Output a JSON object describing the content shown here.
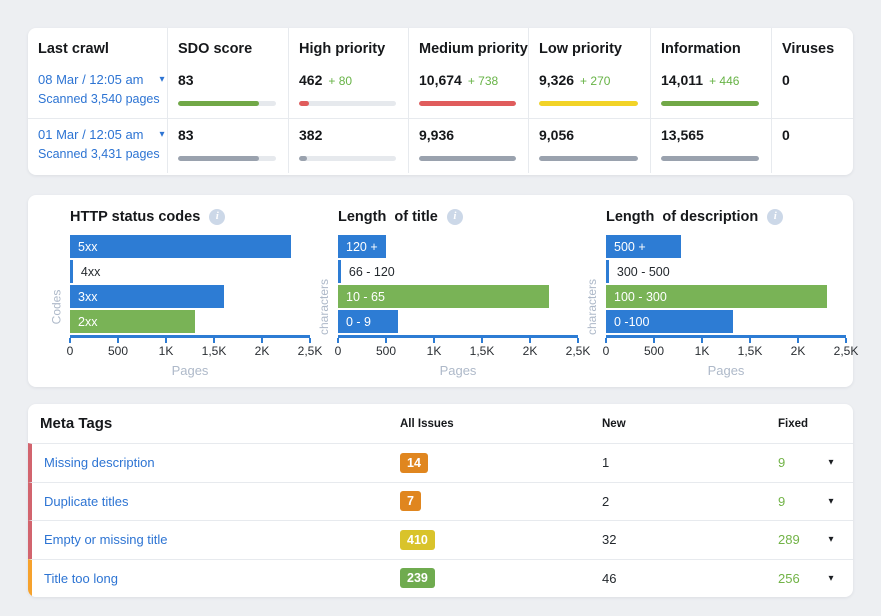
{
  "icons": {
    "chevron_down": "▾",
    "info": "i"
  },
  "top_card": {
    "columns": [
      "Last crawl",
      "SDO score",
      "High priority",
      "Medium priority",
      "Low priority",
      "Information",
      "Viruses"
    ],
    "delta_color": "#67b346",
    "rows": [
      {
        "date": "08 Mar / 12:05 am",
        "scanned": "Scanned 3,540 pages",
        "metrics": [
          {
            "value": "83",
            "delta": "",
            "bar_pct": 83,
            "bar_color": "#71a847"
          },
          {
            "value": "462",
            "delta": "+ 80",
            "bar_pct": 10,
            "bar_color": "#e05c5c"
          },
          {
            "value": "10,674",
            "delta": "+ 738",
            "bar_pct": 100,
            "bar_color": "#e05c5c"
          },
          {
            "value": "9,326",
            "delta": "+ 270",
            "bar_pct": 100,
            "bar_color": "#f2d327"
          },
          {
            "value": "14,011",
            "delta": "+ 446",
            "bar_pct": 100,
            "bar_color": "#71a847"
          },
          {
            "value": "0",
            "delta": "",
            "bar_pct": null,
            "bar_color": null
          }
        ]
      },
      {
        "date": "01 Mar / 12:05 am",
        "scanned": "Scanned 3,431 pages",
        "metrics": [
          {
            "value": "83",
            "delta": "",
            "bar_pct": 83,
            "bar_color": "#9aa2ae"
          },
          {
            "value": "382",
            "delta": "",
            "bar_pct": 8,
            "bar_color": "#9aa2ae"
          },
          {
            "value": "9,936",
            "delta": "",
            "bar_pct": 100,
            "bar_color": "#9aa2ae"
          },
          {
            "value": "9,056",
            "delta": "",
            "bar_pct": 100,
            "bar_color": "#9aa2ae"
          },
          {
            "value": "13,565",
            "delta": "",
            "bar_pct": 100,
            "bar_color": "#9aa2ae"
          },
          {
            "value": "0",
            "delta": "",
            "bar_pct": null,
            "bar_color": null
          }
        ]
      }
    ]
  },
  "chart_data": [
    {
      "type": "bar",
      "orientation": "horizontal",
      "title": "HTTP status codes",
      "ylabel": "Codes",
      "xlabel": "Pages",
      "categories": [
        "5xx",
        "4xx",
        "3xx",
        "2xx"
      ],
      "values": [
        2300,
        25,
        1600,
        1300
      ],
      "bar_colors": [
        "#2d7cd4",
        "#2d7cd4",
        "#2d7cd4",
        "#79b356"
      ],
      "xticks": [
        "0",
        "500",
        "1K",
        "1,5K",
        "2K",
        "2,5K"
      ],
      "xlim": [
        0,
        2500
      ],
      "axis_color": "#2d7cd4",
      "grid": false
    },
    {
      "type": "bar",
      "orientation": "horizontal",
      "title": "Length  of title",
      "ylabel": "characters",
      "xlabel": "Pages",
      "categories": [
        "120 +",
        "66 - 120",
        "10 - 65",
        "0 - 9"
      ],
      "values": [
        500,
        30,
        2200,
        620
      ],
      "bar_colors": [
        "#2d7cd4",
        "#2d7cd4",
        "#79b356",
        "#2d7cd4"
      ],
      "xticks": [
        "0",
        "500",
        "1K",
        "1,5K",
        "2K",
        "2,5K"
      ],
      "xlim": [
        0,
        2500
      ],
      "axis_color": "#2d7cd4",
      "grid": false
    },
    {
      "type": "bar",
      "orientation": "horizontal",
      "title": "Length  of description",
      "ylabel": "characters",
      "xlabel": "Pages",
      "categories": [
        "500 +",
        "300 - 500",
        "100 - 300",
        "0 -100"
      ],
      "values": [
        780,
        25,
        2300,
        1320
      ],
      "bar_colors": [
        "#2d7cd4",
        "#2d7cd4",
        "#79b356",
        "#2d7cd4"
      ],
      "xticks": [
        "0",
        "500",
        "1K",
        "1,5K",
        "2K",
        "2,5K"
      ],
      "xlim": [
        0,
        2500
      ],
      "axis_color": "#2d7cd4",
      "grid": false
    }
  ],
  "meta_table": {
    "title": "Meta Tags",
    "columns": [
      "All Issues",
      "New",
      "Fixed"
    ],
    "fixed_color": "#72b347",
    "rows": [
      {
        "name": "Missing description",
        "all_issues": "14",
        "badge_color": "#e0861f",
        "new": "1",
        "fixed": "9",
        "accent": "#d2646e"
      },
      {
        "name": "Duplicate titles",
        "all_issues": "7",
        "badge_color": "#e0861f",
        "new": "2",
        "fixed": "9",
        "accent": "#d2646e"
      },
      {
        "name": "Empty or missing title",
        "all_issues": "410",
        "badge_color": "#d9c32b",
        "new": "32",
        "fixed": "289",
        "accent": "#d2646e"
      },
      {
        "name": "Title too long",
        "all_issues": "239",
        "badge_color": "#6fab4f",
        "new": "46",
        "fixed": "256",
        "accent": "#f6a22d"
      }
    ]
  }
}
